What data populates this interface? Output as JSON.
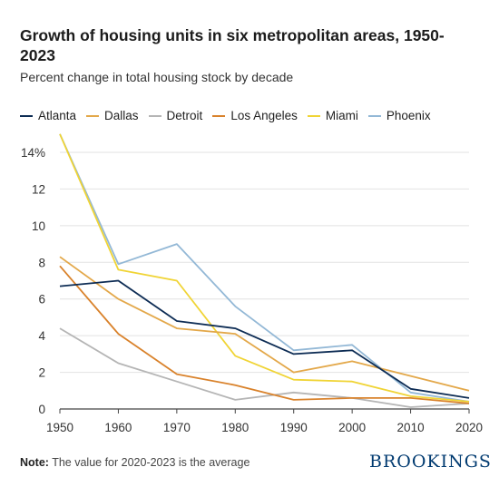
{
  "title": "Growth of housing units in six metropolitan areas, 1950-2023",
  "subtitle": "Percent change in total housing stock by decade",
  "note_label": "Note:",
  "note_text": "The value for 2020-2023 is the average",
  "brand": "BROOKINGS",
  "chart_data": {
    "type": "line",
    "x": [
      1950,
      1960,
      1970,
      1980,
      1990,
      2000,
      2010,
      2020
    ],
    "ylim": [
      0,
      14
    ],
    "yticks": [
      0,
      2,
      4,
      6,
      8,
      10,
      12,
      14
    ],
    "ytick_labels": [
      "0",
      "2",
      "4",
      "6",
      "8",
      "10",
      "12",
      "14%"
    ],
    "xtick_labels": [
      "1950",
      "1960",
      "1970",
      "1980",
      "1990",
      "2000",
      "2010",
      "2020"
    ],
    "grid": "horizontal",
    "legend_position": "top",
    "series": [
      {
        "name": "Atlanta",
        "color": "#0d2c54",
        "values": [
          6.7,
          7.0,
          4.8,
          4.4,
          3.0,
          3.2,
          1.1,
          0.6
        ]
      },
      {
        "name": "Dallas",
        "color": "#e3a84a",
        "values": [
          8.3,
          6.0,
          4.4,
          4.1,
          2.0,
          2.6,
          1.8,
          1.0
        ]
      },
      {
        "name": "Detroit",
        "color": "#b5b5b5",
        "values": [
          4.4,
          2.5,
          1.5,
          0.5,
          0.9,
          0.6,
          0.1,
          0.3
        ]
      },
      {
        "name": "Los Angeles",
        "color": "#d9822b",
        "values": [
          7.8,
          4.1,
          1.9,
          1.3,
          0.5,
          0.6,
          0.6,
          0.3
        ]
      },
      {
        "name": "Miami",
        "color": "#f0d435",
        "values": [
          15.0,
          7.6,
          7.0,
          2.9,
          1.6,
          1.5,
          0.7,
          0.4
        ]
      },
      {
        "name": "Phoenix",
        "color": "#93b8d6",
        "values": [
          15.0,
          7.9,
          9.0,
          5.6,
          3.2,
          3.5,
          0.9,
          0.4
        ]
      }
    ]
  }
}
